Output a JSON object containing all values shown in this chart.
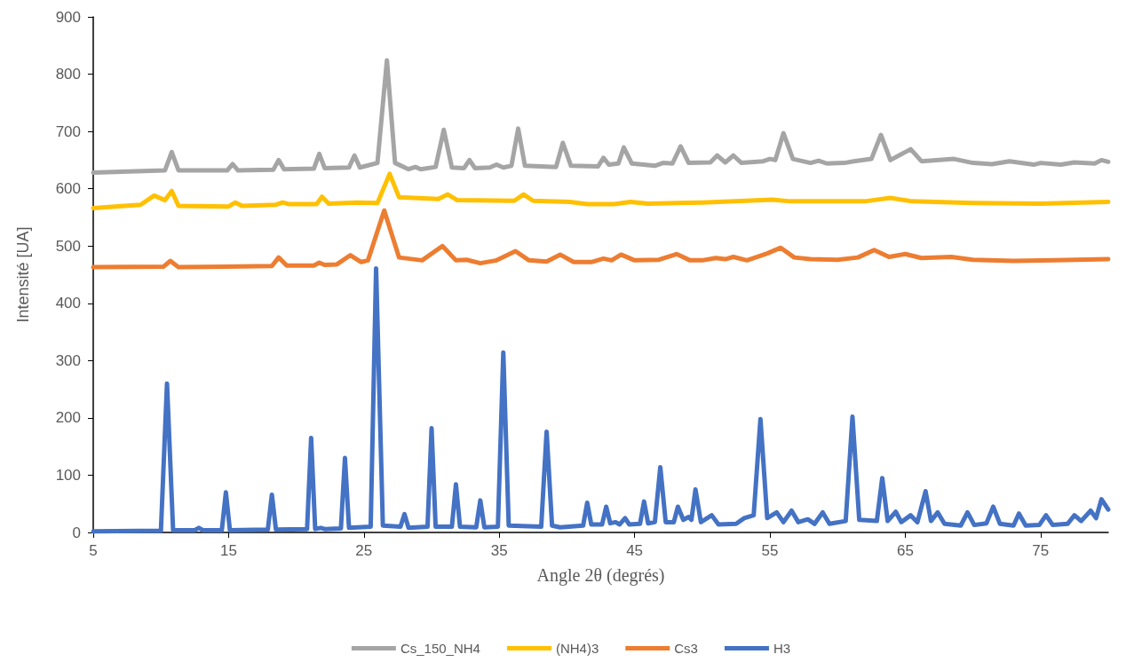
{
  "chart_data": {
    "type": "line",
    "xlabel": "Angle 2θ (degrés)",
    "ylabel": "Intensité [UA]",
    "xlim": [
      5,
      80
    ],
    "xticks": [
      5,
      15,
      25,
      35,
      45,
      55,
      65,
      75
    ],
    "ylim": [
      0,
      900
    ],
    "yticks": [
      0,
      100,
      200,
      300,
      400,
      500,
      600,
      700,
      800,
      900
    ],
    "grid": false,
    "legend": "bottom",
    "marker": "none",
    "line_style": "solid",
    "series": [
      {
        "name": "Cs_150_NH4",
        "color": "#a5a5a5",
        "x": [
          5,
          10.3,
          10.8,
          11.3,
          14.9,
          15.3,
          15.7,
          18.3,
          18.7,
          19.1,
          21.3,
          21.7,
          22.1,
          23.9,
          24.3,
          24.7,
          26.0,
          26.7,
          27.3,
          28.3,
          28.8,
          29.2,
          30.3,
          30.9,
          31.5,
          32.4,
          32.8,
          33.2,
          34.3,
          34.8,
          35.3,
          35.9,
          36.4,
          36.9,
          39.2,
          39.7,
          40.3,
          42.3,
          42.7,
          43.1,
          43.8,
          44.2,
          44.8,
          46.5,
          47.1,
          47.8,
          48.4,
          49.0,
          50.6,
          51.1,
          51.7,
          52.3,
          52.9,
          54.5,
          55.0,
          55.4,
          56.0,
          56.7,
          58.0,
          58.6,
          59.2,
          60.5,
          61.2,
          62.5,
          63.2,
          63.9,
          65.4,
          66.2,
          68.6,
          70,
          71.4,
          72.7,
          74.5,
          75.0,
          76.5,
          77.5,
          79.0,
          79.5,
          80
        ],
        "values": [
          628,
          632,
          664,
          632,
          632,
          643,
          632,
          633,
          650,
          634,
          635,
          661,
          636,
          637,
          658,
          637,
          645,
          824,
          645,
          634,
          638,
          634,
          638,
          703,
          637,
          636,
          650,
          636,
          637,
          642,
          637,
          640,
          705,
          640,
          638,
          680,
          640,
          639,
          654,
          642,
          644,
          672,
          644,
          640,
          645,
          644,
          674,
          645,
          646,
          658,
          646,
          658,
          645,
          648,
          652,
          650,
          697,
          652,
          645,
          649,
          644,
          645,
          648,
          652,
          694,
          650,
          669,
          648,
          652,
          645,
          643,
          648,
          642,
          645,
          642,
          646,
          644,
          650,
          647
        ]
      },
      {
        "name": "(NH4)3",
        "color": "#ffc000",
        "x": [
          5,
          8.5,
          9.5,
          10.3,
          10.8,
          11.3,
          15.0,
          15.5,
          16.0,
          18.5,
          19.0,
          19.5,
          21.5,
          21.9,
          22.4,
          24.5,
          26.0,
          26.9,
          27.6,
          30.5,
          31.2,
          31.9,
          36.1,
          36.8,
          37.5,
          40.2,
          41.5,
          43.5,
          44.7,
          46,
          50,
          55.2,
          56.5,
          62.0,
          63.9,
          65.5,
          70,
          75,
          80
        ],
        "values": [
          566,
          572,
          588,
          580,
          596,
          570,
          569,
          576,
          570,
          572,
          576,
          573,
          573,
          586,
          574,
          576,
          575,
          626,
          585,
          582,
          590,
          580,
          579,
          590,
          579,
          577,
          573,
          573,
          577,
          574,
          576,
          581,
          578,
          578,
          584,
          578,
          575,
          574,
          577
        ]
      },
      {
        "name": "Cs3",
        "color": "#ed7d31",
        "x": [
          5,
          10.2,
          10.7,
          11.3,
          18.2,
          18.7,
          19.3,
          21.3,
          21.7,
          22.1,
          23.0,
          24.0,
          24.8,
          25.3,
          26.5,
          27.6,
          29.3,
          30.8,
          31.8,
          32.6,
          33.6,
          34.8,
          36.2,
          37.2,
          38.5,
          39.5,
          40.5,
          41.8,
          42.7,
          43.3,
          44.0,
          45.0,
          46.8,
          48.1,
          49.1,
          50.0,
          51.0,
          51.7,
          52.3,
          53.3,
          54.8,
          55.8,
          56.8,
          58.0,
          60.0,
          61.5,
          62.7,
          63.8,
          65.0,
          66.2,
          68.4,
          70.0,
          73.0,
          76.0,
          80
        ],
        "values": [
          463,
          464,
          474,
          463,
          465,
          480,
          466,
          466,
          471,
          467,
          468,
          484,
          472,
          475,
          562,
          480,
          475,
          500,
          475,
          476,
          470,
          475,
          491,
          475,
          473,
          485,
          472,
          472,
          478,
          475,
          485,
          475,
          476,
          486,
          475,
          475,
          479,
          477,
          481,
          475,
          487,
          497,
          480,
          477,
          476,
          480,
          493,
          481,
          486,
          479,
          481,
          476,
          474,
          475,
          477
        ]
      },
      {
        "name": "H3",
        "color": "#4472c4",
        "x": [
          5,
          10.0,
          10.45,
          10.9,
          12.5,
          12.8,
          13.1,
          14.5,
          14.8,
          15.1,
          17.9,
          18.2,
          18.5,
          20.8,
          21.1,
          21.4,
          21.8,
          22.1,
          23.3,
          23.6,
          23.9,
          25.5,
          25.9,
          26.4,
          27.7,
          28.0,
          28.3,
          29.7,
          30.0,
          30.3,
          31.5,
          31.8,
          32.1,
          33.3,
          33.6,
          33.9,
          34.9,
          35.3,
          35.7,
          38.1,
          38.5,
          38.9,
          39.5,
          41.2,
          41.5,
          41.8,
          42.6,
          42.9,
          43.2,
          43.6,
          43.9,
          44.3,
          44.6,
          45.4,
          45.7,
          46.0,
          46.5,
          46.9,
          47.3,
          47.9,
          48.2,
          48.6,
          49.0,
          49.2,
          49.5,
          49.9,
          50.7,
          51.2,
          52.5,
          53.1,
          53.8,
          54.3,
          54.8,
          55.5,
          56.0,
          56.6,
          57.1,
          57.8,
          58.3,
          58.9,
          59.4,
          60.6,
          61.1,
          61.6,
          62.9,
          63.3,
          63.7,
          64.3,
          64.7,
          65.4,
          65.9,
          66.5,
          66.9,
          67.4,
          67.9,
          69.1,
          69.6,
          70.1,
          71.0,
          71.5,
          72.0,
          73.0,
          73.4,
          73.9,
          74.9,
          75.4,
          75.9,
          77.0,
          77.5,
          78.0,
          78.7,
          79.1,
          79.5,
          80
        ],
        "values": [
          2,
          3,
          260,
          4,
          4,
          8,
          4,
          4,
          70,
          4,
          5,
          66,
          5,
          6,
          165,
          6,
          8,
          6,
          7,
          130,
          8,
          10,
          461,
          12,
          10,
          32,
          8,
          10,
          182,
          10,
          10,
          84,
          10,
          9,
          56,
          9,
          10,
          314,
          12,
          10,
          176,
          12,
          9,
          12,
          52,
          14,
          14,
          45,
          16,
          18,
          14,
          25,
          14,
          15,
          54,
          16,
          18,
          114,
          18,
          18,
          45,
          22,
          27,
          22,
          75,
          18,
          30,
          14,
          15,
          25,
          30,
          198,
          25,
          35,
          18,
          38,
          18,
          23,
          15,
          35,
          15,
          20,
          202,
          22,
          20,
          95,
          20,
          36,
          18,
          30,
          18,
          72,
          20,
          35,
          15,
          12,
          35,
          13,
          16,
          45,
          15,
          12,
          33,
          12,
          13,
          30,
          13,
          15,
          30,
          20,
          38,
          25,
          58,
          40
        ]
      }
    ]
  }
}
